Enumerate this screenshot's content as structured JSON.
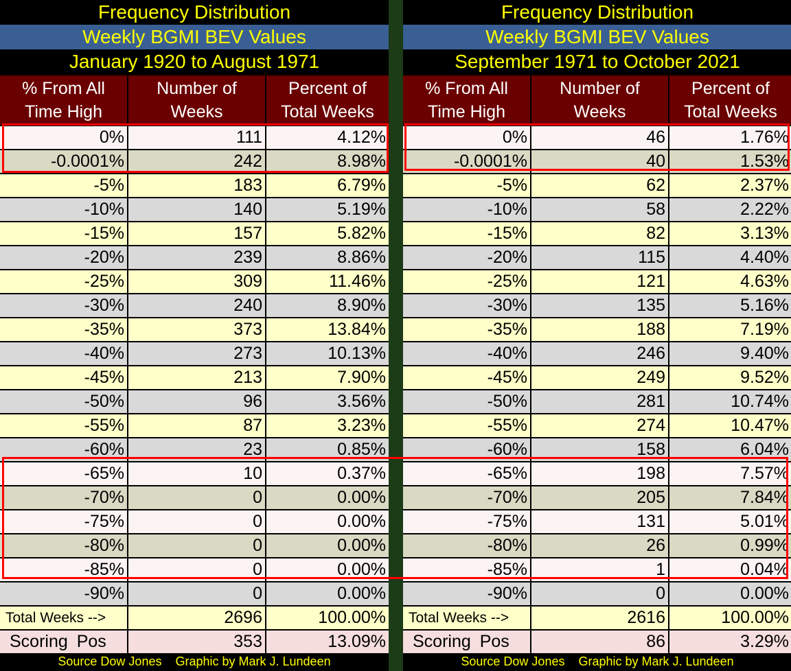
{
  "header": {
    "col0": "% From All\nTime High",
    "col1": "Number of\nWeeks",
    "col2": "Percent of\nTotal Weeks"
  },
  "panels": [
    {
      "title": "Frequency Distribution",
      "subtitle": "Weekly BGMI BEV Values",
      "period": "January 1920 to August 1971",
      "rows": [
        [
          "0%",
          "111",
          "4.12%"
        ],
        [
          "-0.0001%",
          "242",
          "8.98%"
        ],
        [
          "-5%",
          "183",
          "6.79%"
        ],
        [
          "-10%",
          "140",
          "5.19%"
        ],
        [
          "-15%",
          "157",
          "5.82%"
        ],
        [
          "-20%",
          "239",
          "8.86%"
        ],
        [
          "-25%",
          "309",
          "11.46%"
        ],
        [
          "-30%",
          "240",
          "8.90%"
        ],
        [
          "-35%",
          "373",
          "13.84%"
        ],
        [
          "-40%",
          "273",
          "10.13%"
        ],
        [
          "-45%",
          "213",
          "7.90%"
        ],
        [
          "-50%",
          "96",
          "3.56%"
        ],
        [
          "-55%",
          "87",
          "3.23%"
        ],
        [
          "-60%",
          "23",
          "0.85%"
        ],
        [
          "-65%",
          "10",
          "0.37%"
        ],
        [
          "-70%",
          "0",
          "0.00%"
        ],
        [
          "-75%",
          "0",
          "0.00%"
        ],
        [
          "-80%",
          "0",
          "0.00%"
        ],
        [
          "-85%",
          "0",
          "0.00%"
        ],
        [
          "-90%",
          "0",
          "0.00%"
        ]
      ],
      "total": [
        "Total Weeks -->",
        "2696",
        "100.00%"
      ],
      "scoring": [
        "Scoring Pos",
        "353",
        "13.09%"
      ],
      "footer": "Source Dow Jones    Graphic by Mark J. Lundeen"
    },
    {
      "title": "Frequency Distribution",
      "subtitle": "Weekly BGMI BEV Values",
      "period": "September 1971 to October 2021",
      "rows": [
        [
          "0%",
          "46",
          "1.76%"
        ],
        [
          "-0.0001%",
          "40",
          "1.53%"
        ],
        [
          "-5%",
          "62",
          "2.37%"
        ],
        [
          "-10%",
          "58",
          "2.22%"
        ],
        [
          "-15%",
          "82",
          "3.13%"
        ],
        [
          "-20%",
          "115",
          "4.40%"
        ],
        [
          "-25%",
          "121",
          "4.63%"
        ],
        [
          "-30%",
          "135",
          "5.16%"
        ],
        [
          "-35%",
          "188",
          "7.19%"
        ],
        [
          "-40%",
          "246",
          "9.40%"
        ],
        [
          "-45%",
          "249",
          "9.52%"
        ],
        [
          "-50%",
          "281",
          "10.74%"
        ],
        [
          "-55%",
          "274",
          "10.47%"
        ],
        [
          "-60%",
          "158",
          "6.04%"
        ],
        [
          "-65%",
          "198",
          "7.57%"
        ],
        [
          "-70%",
          "205",
          "7.84%"
        ],
        [
          "-75%",
          "131",
          "5.01%"
        ],
        [
          "-80%",
          "26",
          "0.99%"
        ],
        [
          "-85%",
          "1",
          "0.04%"
        ],
        [
          "-90%",
          "0",
          "0.00%"
        ]
      ],
      "total": [
        "Total Weeks -->",
        "2616",
        "100.00%"
      ],
      "scoring": [
        "Scoring Pos",
        "86",
        "3.29%"
      ],
      "footer": "Source Dow Jones    Graphic by Mark J. Lundeen"
    }
  ],
  "colors": {
    "title_text": "#ffff00",
    "title_band": "#3a5f94",
    "header_bg": "#6b0000",
    "row_light": "#ffffc9",
    "row_gray": "#d9d9d9",
    "highlight_box": "#ff0000",
    "divider": "#1c3b17"
  }
}
